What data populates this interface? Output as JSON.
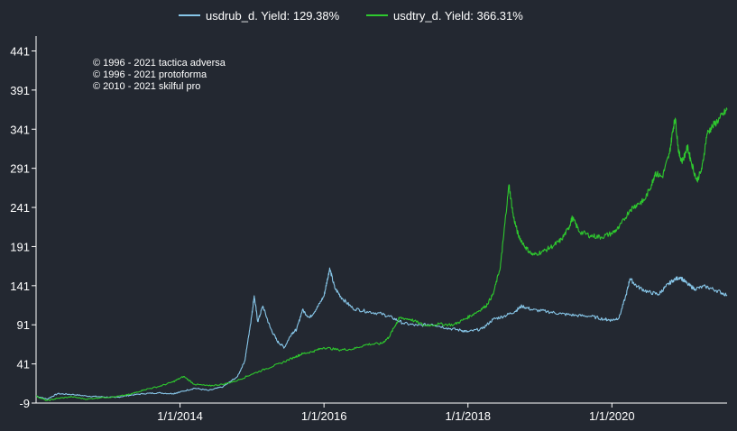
{
  "chart_data": {
    "type": "line",
    "title": "",
    "xlabel": "",
    "ylabel": "",
    "y_ticks": [
      "-9",
      "41",
      "91",
      "141",
      "191",
      "241",
      "291",
      "341",
      "391",
      "441"
    ],
    "ylim": [
      -9,
      460
    ],
    "x_ticks": [
      {
        "label": "1/1/2014",
        "year": 2014.0
      },
      {
        "label": "1/1/2016",
        "year": 2016.0
      },
      {
        "label": "1/1/2018",
        "year": 2018.0
      },
      {
        "label": "1/1/2020",
        "year": 2020.0
      }
    ],
    "xlim": [
      2012.0,
      2021.6
    ],
    "grid": false,
    "legend_position": "top-center",
    "copyright": [
      "© 1996 - 2021 tactica adversa",
      "© 1996 - 2021 protoforma",
      "© 2010 - 2021 skilful pro"
    ],
    "series": [
      {
        "name": "usdrub_d. Yield: 129.38%",
        "color": "#87c6e8",
        "points": [
          [
            2012.0,
            0
          ],
          [
            2012.15,
            -4
          ],
          [
            2012.3,
            3
          ],
          [
            2012.5,
            2
          ],
          [
            2012.7,
            0
          ],
          [
            2012.9,
            -1
          ],
          [
            2013.1,
            -2
          ],
          [
            2013.3,
            1
          ],
          [
            2013.5,
            3
          ],
          [
            2013.7,
            4
          ],
          [
            2013.9,
            3
          ],
          [
            2014.0,
            5
          ],
          [
            2014.2,
            10
          ],
          [
            2014.4,
            7
          ],
          [
            2014.6,
            12
          ],
          [
            2014.8,
            25
          ],
          [
            2014.9,
            45
          ],
          [
            2014.95,
            75
          ],
          [
            2015.0,
            105
          ],
          [
            2015.03,
            128
          ],
          [
            2015.08,
            95
          ],
          [
            2015.15,
            115
          ],
          [
            2015.25,
            88
          ],
          [
            2015.35,
            70
          ],
          [
            2015.45,
            62
          ],
          [
            2015.55,
            80
          ],
          [
            2015.62,
            85
          ],
          [
            2015.7,
            110
          ],
          [
            2015.8,
            100
          ],
          [
            2015.9,
            112
          ],
          [
            2016.0,
            128
          ],
          [
            2016.05,
            150
          ],
          [
            2016.08,
            163
          ],
          [
            2016.15,
            138
          ],
          [
            2016.25,
            125
          ],
          [
            2016.4,
            112
          ],
          [
            2016.6,
            108
          ],
          [
            2016.8,
            105
          ],
          [
            2016.95,
            100
          ],
          [
            2017.1,
            93
          ],
          [
            2017.3,
            90
          ],
          [
            2017.5,
            92
          ],
          [
            2017.7,
            87
          ],
          [
            2017.9,
            84
          ],
          [
            2018.0,
            82
          ],
          [
            2018.2,
            86
          ],
          [
            2018.35,
            98
          ],
          [
            2018.5,
            102
          ],
          [
            2018.65,
            108
          ],
          [
            2018.75,
            115
          ],
          [
            2018.9,
            110
          ],
          [
            2019.1,
            108
          ],
          [
            2019.3,
            105
          ],
          [
            2019.5,
            103
          ],
          [
            2019.7,
            102
          ],
          [
            2019.9,
            98
          ],
          [
            2020.0,
            97
          ],
          [
            2020.1,
            100
          ],
          [
            2020.2,
            130
          ],
          [
            2020.25,
            150
          ],
          [
            2020.35,
            140
          ],
          [
            2020.5,
            133
          ],
          [
            2020.65,
            130
          ],
          [
            2020.75,
            140
          ],
          [
            2020.85,
            148
          ],
          [
            2020.95,
            152
          ],
          [
            2021.05,
            143
          ],
          [
            2021.15,
            137
          ],
          [
            2021.3,
            140
          ],
          [
            2021.45,
            135
          ],
          [
            2021.6,
            129
          ]
        ]
      },
      {
        "name": "usdtry_d. Yield: 366.31%",
        "color": "#2ec92e",
        "points": [
          [
            2012.0,
            0
          ],
          [
            2012.15,
            -6
          ],
          [
            2012.3,
            -3
          ],
          [
            2012.5,
            -1
          ],
          [
            2012.7,
            -4
          ],
          [
            2012.9,
            -2
          ],
          [
            2013.1,
            -1
          ],
          [
            2013.3,
            2
          ],
          [
            2013.5,
            8
          ],
          [
            2013.7,
            12
          ],
          [
            2013.9,
            18
          ],
          [
            2014.05,
            25
          ],
          [
            2014.2,
            15
          ],
          [
            2014.4,
            13
          ],
          [
            2014.6,
            15
          ],
          [
            2014.8,
            20
          ],
          [
            2015.0,
            28
          ],
          [
            2015.2,
            35
          ],
          [
            2015.4,
            42
          ],
          [
            2015.6,
            50
          ],
          [
            2015.7,
            54
          ],
          [
            2015.85,
            57
          ],
          [
            2016.0,
            62
          ],
          [
            2016.2,
            59
          ],
          [
            2016.4,
            60
          ],
          [
            2016.6,
            66
          ],
          [
            2016.8,
            67
          ],
          [
            2016.9,
            75
          ],
          [
            2017.0,
            92
          ],
          [
            2017.05,
            100
          ],
          [
            2017.2,
            98
          ],
          [
            2017.4,
            90
          ],
          [
            2017.6,
            92
          ],
          [
            2017.8,
            91
          ],
          [
            2017.95,
            98
          ],
          [
            2018.1,
            106
          ],
          [
            2018.25,
            115
          ],
          [
            2018.35,
            130
          ],
          [
            2018.45,
            165
          ],
          [
            2018.5,
            208
          ],
          [
            2018.57,
            270
          ],
          [
            2018.63,
            230
          ],
          [
            2018.7,
            205
          ],
          [
            2018.8,
            190
          ],
          [
            2018.9,
            180
          ],
          [
            2019.05,
            185
          ],
          [
            2019.2,
            193
          ],
          [
            2019.3,
            200
          ],
          [
            2019.4,
            215
          ],
          [
            2019.45,
            228
          ],
          [
            2019.55,
            210
          ],
          [
            2019.7,
            205
          ],
          [
            2019.85,
            203
          ],
          [
            2020.0,
            208
          ],
          [
            2020.1,
            215
          ],
          [
            2020.25,
            238
          ],
          [
            2020.35,
            245
          ],
          [
            2020.45,
            250
          ],
          [
            2020.55,
            270
          ],
          [
            2020.6,
            285
          ],
          [
            2020.7,
            280
          ],
          [
            2020.8,
            310
          ],
          [
            2020.85,
            342
          ],
          [
            2020.88,
            355
          ],
          [
            2020.93,
            310
          ],
          [
            2020.98,
            300
          ],
          [
            2021.05,
            318
          ],
          [
            2021.1,
            300
          ],
          [
            2021.18,
            275
          ],
          [
            2021.25,
            290
          ],
          [
            2021.32,
            335
          ],
          [
            2021.4,
            345
          ],
          [
            2021.5,
            355
          ],
          [
            2021.6,
            366
          ]
        ]
      }
    ]
  }
}
